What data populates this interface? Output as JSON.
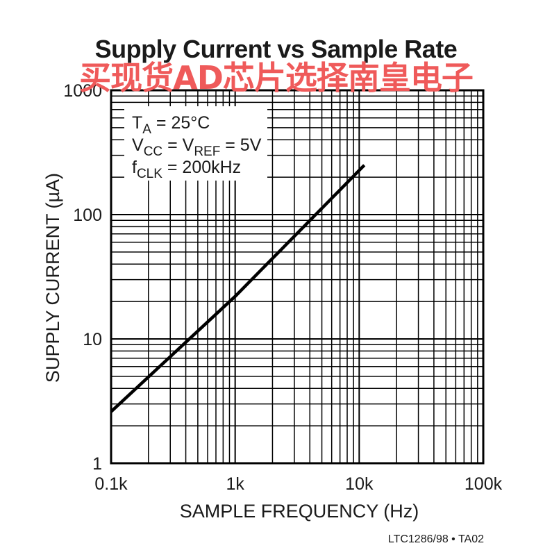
{
  "watermark": "买现货AD芯片选择南皇电子",
  "footer_ref": "LTC1286/98 • TA02",
  "annotations": [
    {
      "main": "T",
      "sub": "A",
      "rest": " = 25°C"
    },
    {
      "main": "V",
      "sub": "CC",
      "mid": " = V",
      "sub2": "REF",
      "rest": " = 5V"
    },
    {
      "main": "f",
      "sub": "CLK",
      "rest": " = 200kHz"
    }
  ],
  "chart_data": {
    "type": "line",
    "title": "Supply Current vs Sample Rate",
    "xlabel": "SAMPLE FREQUENCY (Hz)",
    "ylabel": "SUPPLY CURRENT (µA)",
    "x_scale": "log",
    "y_scale": "log",
    "xlim": [
      100,
      100000
    ],
    "ylim": [
      1,
      1000
    ],
    "x_ticks": [
      {
        "value": 100,
        "label": "0.1k"
      },
      {
        "value": 1000,
        "label": "1k"
      },
      {
        "value": 10000,
        "label": "10k"
      },
      {
        "value": 100000,
        "label": "100k"
      }
    ],
    "y_ticks": [
      {
        "value": 1,
        "label": "1"
      },
      {
        "value": 10,
        "label": "10"
      },
      {
        "value": 100,
        "label": "100"
      },
      {
        "value": 1000,
        "label": "1000"
      }
    ],
    "grid": true,
    "series": [
      {
        "x": [
          100,
          1000,
          11000
        ],
        "y": [
          2.6,
          22,
          250
        ],
        "color": "#000000"
      }
    ]
  }
}
